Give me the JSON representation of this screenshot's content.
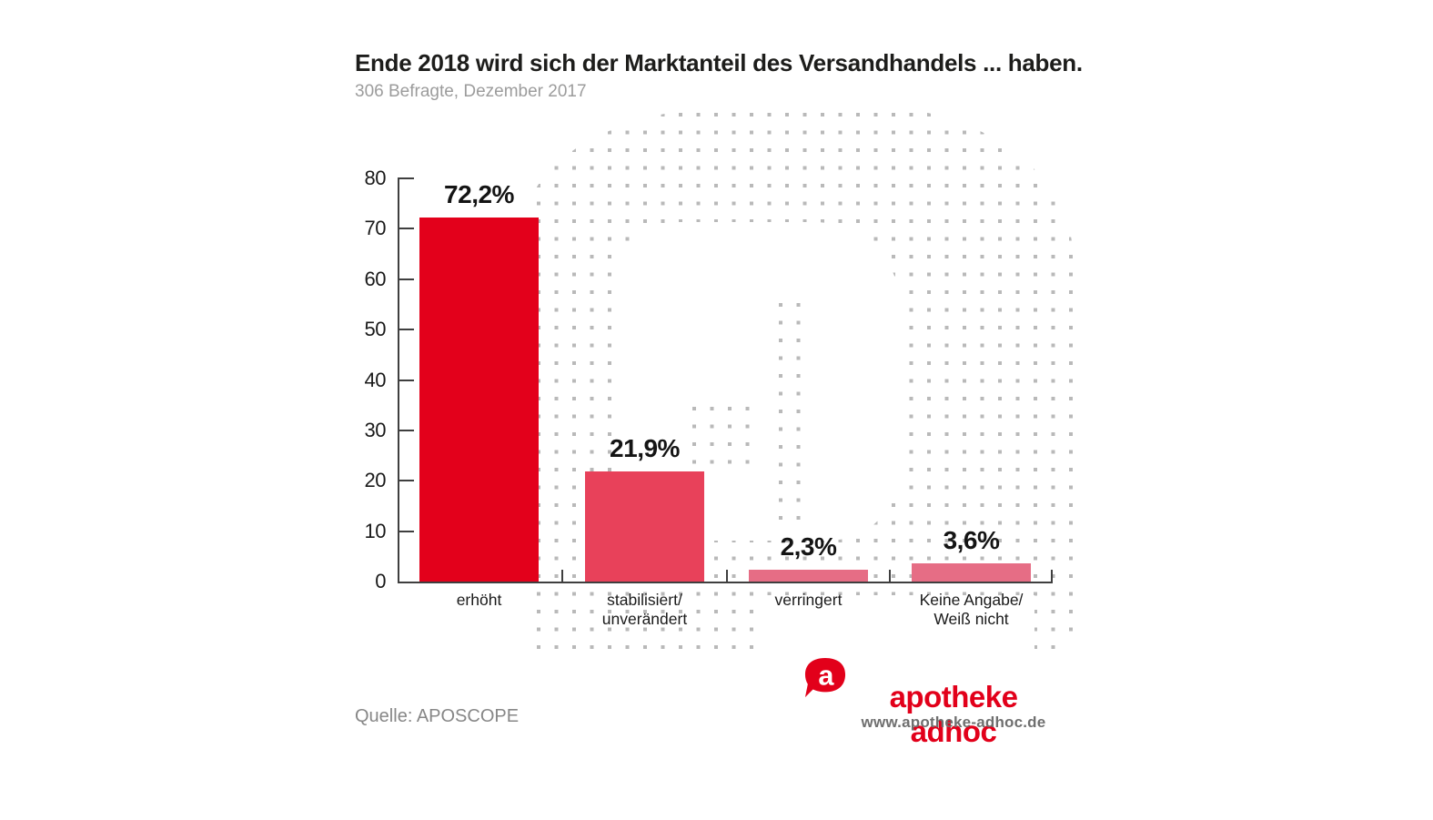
{
  "header": {
    "title": "Ende 2018 wird sich der Marktanteil des Versandhandels ... haben.",
    "subtitle": "306 Befragte, Dezember 2017"
  },
  "chart_data": {
    "type": "bar",
    "title": "Ende 2018 wird sich der Marktanteil des Versandhandels ... haben.",
    "subtitle": "306 Befragte, Dezember 2017",
    "categories": [
      "erhöht",
      "stabilisiert/ unverändert",
      "verringert",
      "Keine Angabe/ Weiß nicht"
    ],
    "category_lines": [
      [
        "erhöht"
      ],
      [
        "stabilisiert/",
        "unverändert"
      ],
      [
        "verringert"
      ],
      [
        "Keine Angabe/",
        "Weiß nicht"
      ]
    ],
    "values": [
      72.2,
      21.9,
      2.3,
      3.6
    ],
    "value_labels": [
      "72,2%",
      "21,9%",
      "2,3%",
      "3,6%"
    ],
    "bar_colors": [
      "#e3001b",
      "#e8415a",
      "#e66d85",
      "#e66d85"
    ],
    "ylim": [
      0,
      80
    ],
    "yticks": [
      0,
      10,
      20,
      30,
      40,
      50,
      60,
      70,
      80
    ],
    "xlabel": "",
    "ylabel": "",
    "grid": false,
    "legend_position": "none"
  },
  "footer": {
    "source": "Quelle: APOSCOPE",
    "brand_name": "apotheke adhoc",
    "brand_url": "www.apotheke-adhoc.de",
    "brand_icon": "a-speech-bubble-icon",
    "brand_icon_letter": "a",
    "brand_color": "#e2001a"
  },
  "colors": {
    "bar_strong_red": "#e3001b",
    "bar_crimson": "#e8415a",
    "bar_rose": "#e66d85",
    "dot_gray": "#b9b9b9",
    "axis_gray": "#3f3f3f",
    "subtitle_gray": "#9c9c9c"
  }
}
